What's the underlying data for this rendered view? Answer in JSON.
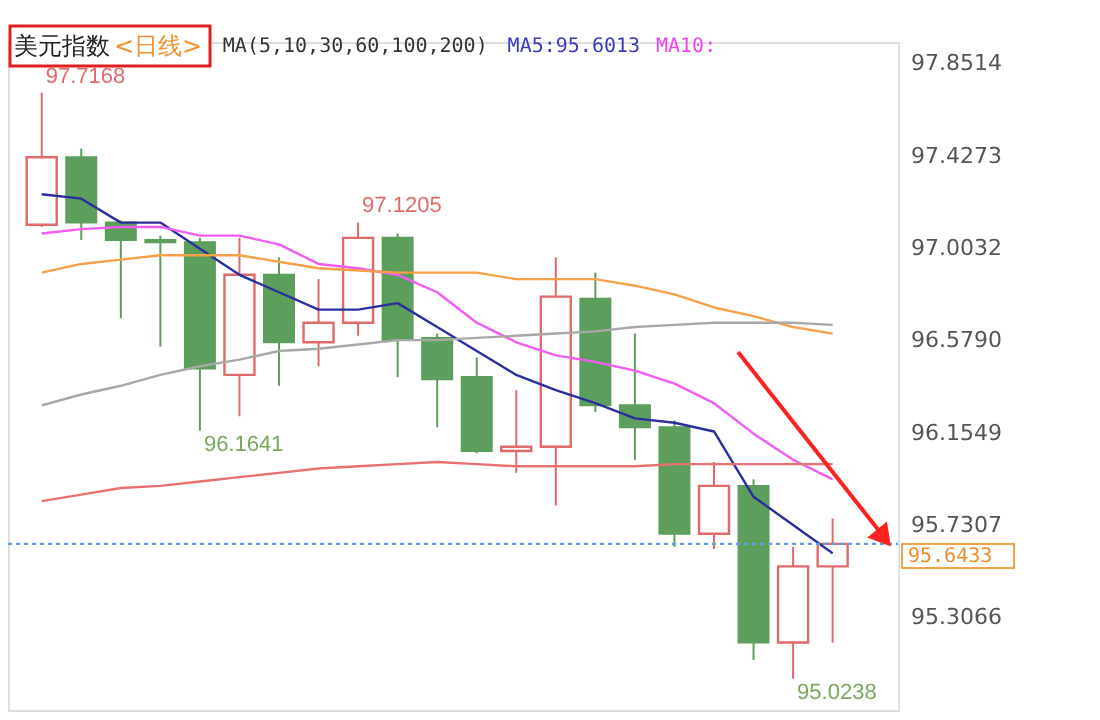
{
  "chart_data": {
    "type": "candlestick",
    "title": "美元指数",
    "annotations": [
      "<日线>",
      "MA(5,10,30,60,100,200)",
      "MA5:95.6013",
      "MA10:",
      "97.7168",
      "97.1205",
      "96.1641",
      "95.0238"
    ],
    "categories": [
      null,
      null,
      null,
      null,
      null,
      null,
      null,
      null,
      null,
      null,
      null,
      null,
      null,
      null,
      null,
      null,
      null,
      null,
      null,
      null,
      null
    ],
    "ohlc": [
      [
        97.11,
        97.7168,
        97.1,
        97.42
      ],
      [
        97.42,
        97.46,
        97.04,
        97.12
      ],
      [
        97.12,
        97.13,
        96.68,
        97.04
      ],
      [
        97.04,
        97.06,
        96.55,
        97.03
      ],
      [
        97.03,
        97.05,
        96.1641,
        96.45
      ],
      [
        96.42,
        97.05,
        96.23,
        96.88
      ],
      [
        96.88,
        96.96,
        96.37,
        96.57
      ],
      [
        96.57,
        96.86,
        96.46,
        96.66
      ],
      [
        96.66,
        97.1205,
        96.6,
        97.05
      ],
      [
        97.05,
        97.07,
        96.41,
        96.58
      ],
      [
        96.59,
        96.61,
        96.18,
        96.4
      ],
      [
        96.41,
        96.5,
        96.06,
        96.07
      ],
      [
        96.07,
        96.35,
        95.97,
        96.09
      ],
      [
        96.09,
        96.96,
        95.82,
        96.78
      ],
      [
        96.77,
        96.89,
        96.25,
        96.28
      ],
      [
        96.28,
        96.61,
        96.03,
        96.18
      ],
      [
        96.18,
        96.21,
        95.63,
        95.69
      ],
      [
        95.69,
        96.02,
        95.62,
        95.91
      ],
      [
        95.91,
        95.94,
        95.11,
        95.19
      ],
      [
        95.19,
        95.63,
        95.0238,
        95.54
      ],
      [
        95.54,
        95.76,
        95.19,
        95.6433
      ]
    ],
    "series": [
      {
        "type": "line",
        "color": "#2b2f9e",
        "values": [
          97.25,
          97.23,
          97.12,
          97.12,
          97.0,
          96.88,
          96.8,
          96.72,
          96.72,
          96.75,
          96.64,
          96.53,
          96.42,
          96.35,
          96.29,
          96.22,
          96.2,
          96.16,
          95.86,
          95.73,
          95.6
        ]
      },
      {
        "type": "line",
        "color": "#f25cf2",
        "values": [
          97.07,
          97.09,
          97.1,
          97.1,
          97.06,
          97.06,
          97.02,
          96.93,
          96.91,
          96.88,
          96.8,
          96.66,
          96.57,
          96.51,
          96.48,
          96.44,
          96.38,
          96.29,
          96.15,
          96.03,
          95.94
        ]
      },
      {
        "type": "line",
        "color": "#f7a04a",
        "values": [
          96.89,
          96.93,
          96.95,
          96.97,
          96.97,
          96.97,
          96.94,
          96.91,
          96.9,
          96.89,
          96.89,
          96.89,
          96.86,
          96.86,
          96.86,
          96.83,
          96.79,
          96.73,
          96.69,
          96.64,
          96.61
        ]
      },
      {
        "type": "line",
        "color": "#a8a8a8",
        "values": [
          96.28,
          96.33,
          96.37,
          96.42,
          96.46,
          96.49,
          96.53,
          96.54,
          96.56,
          96.58,
          96.58,
          96.59,
          96.6,
          96.61,
          96.62,
          96.64,
          96.65,
          96.66,
          96.66,
          96.66,
          96.65
        ]
      },
      {
        "type": "line",
        "color": "#e87070",
        "values": [
          95.84,
          95.87,
          95.9,
          95.91,
          95.93,
          95.95,
          95.97,
          95.99,
          96.0,
          96.01,
          96.02,
          96.01,
          96.0,
          96.0,
          96.0,
          96.0,
          96.01,
          96.01,
          96.01,
          96.01,
          96.01
        ]
      }
    ],
    "ref_lines": [
      {
        "axis": "y",
        "value": 95.6433,
        "label": "95.6433",
        "color": "#5aa0e6",
        "line_style": "dotted"
      }
    ],
    "ylim": [
      94.88,
      97.95
    ],
    "yticks": [
      {
        "value": 97.8514,
        "label": "97.8514"
      },
      {
        "value": 97.4273,
        "label": "97.4273"
      },
      {
        "value": 97.0032,
        "label": "97.0032"
      },
      {
        "value": 96.579,
        "label": "96.5790"
      },
      {
        "value": 96.1549,
        "label": "96.1549"
      },
      {
        "value": 95.7307,
        "label": "95.7307"
      },
      {
        "value": 95.3066,
        "label": "95.3066"
      }
    ],
    "tick_labels": "y"
  }
}
